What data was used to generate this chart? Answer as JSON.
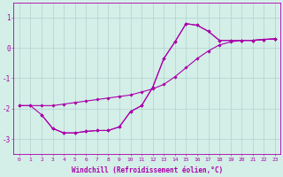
{
  "background_color": "#d4eee8",
  "grid_color": "#b0d4cc",
  "line_color": "#aa00aa",
  "marker": "D",
  "markersize": 1.8,
  "linewidth": 0.8,
  "xlim": [
    -0.5,
    23.5
  ],
  "ylim": [
    -3.5,
    1.5
  ],
  "xlabel": "Windchill (Refroidissement éolien,°C)",
  "xlabel_fontsize": 5.5,
  "xtick_labels": [
    "0",
    "1",
    "2",
    "3",
    "4",
    "5",
    "6",
    "7",
    "8",
    "9",
    "10",
    "11",
    "12",
    "13",
    "14",
    "15",
    "16",
    "17",
    "18",
    "19",
    "20",
    "21",
    "22",
    "23"
  ],
  "ytick_values": [
    -3,
    -2,
    -1,
    0,
    1
  ],
  "ytick_fontsize": 5.5,
  "xtick_fontsize": 4.5,
  "line1_x": [
    0,
    1,
    2,
    3,
    4,
    5,
    6,
    7,
    8,
    9,
    10,
    11,
    12,
    13,
    14,
    15,
    16,
    17,
    18,
    19,
    20,
    21,
    22,
    23
  ],
  "line1_y": [
    -1.9,
    -1.9,
    -1.9,
    -1.9,
    -1.85,
    -1.8,
    -1.75,
    -1.7,
    -1.65,
    -1.6,
    -1.55,
    -1.45,
    -1.35,
    -1.2,
    -0.95,
    -0.65,
    -0.35,
    -0.1,
    0.1,
    0.2,
    0.25,
    0.25,
    0.28,
    0.3
  ],
  "line2_x": [
    0,
    1,
    2,
    3,
    4,
    5,
    6,
    7,
    8,
    9,
    10,
    11,
    12,
    13,
    14,
    15,
    16,
    17,
    18,
    19,
    20,
    21,
    22,
    23
  ],
  "line2_y": [
    -1.9,
    -1.9,
    -2.2,
    -2.65,
    -2.8,
    -2.8,
    -2.75,
    -2.72,
    -2.72,
    -2.6,
    -2.1,
    -1.9,
    -1.3,
    -0.35,
    0.2,
    0.8,
    0.75,
    0.55,
    0.25,
    0.25,
    0.25,
    0.25,
    0.28,
    0.3
  ],
  "line3_x": [
    2,
    3,
    4,
    5,
    6,
    7,
    8,
    9,
    10,
    11,
    12,
    13,
    14,
    15,
    16,
    17,
    18,
    19,
    20,
    21,
    22,
    23
  ],
  "line3_y": [
    -2.2,
    -2.65,
    -2.8,
    -2.8,
    -2.75,
    -2.72,
    -2.72,
    -2.6,
    -2.1,
    -1.9,
    -1.3,
    -0.35,
    0.2,
    0.8,
    0.75,
    0.55,
    0.25,
    0.25,
    0.25,
    0.25,
    0.28,
    0.3
  ]
}
